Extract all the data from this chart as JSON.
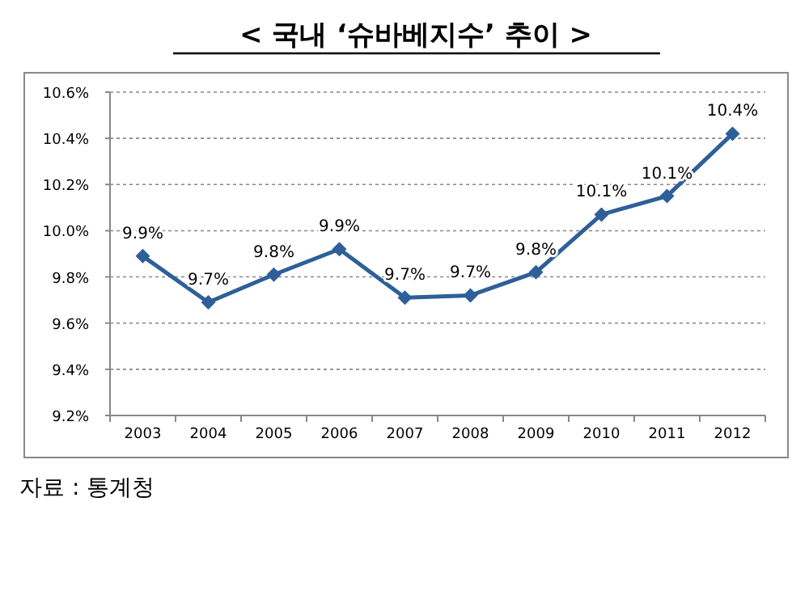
{
  "chart_data": {
    "type": "line",
    "title": "< 국내 ‘슈바베지수’ 추이 >",
    "categories": [
      "2003",
      "2004",
      "2005",
      "2006",
      "2007",
      "2008",
      "2009",
      "2010",
      "2011",
      "2012"
    ],
    "series": [
      {
        "color": "#2e5f98",
        "values": [
          9.89,
          9.69,
          9.81,
          9.92,
          9.71,
          9.72,
          9.82,
          10.07,
          10.15,
          10.42
        ],
        "value_labels": [
          "9.9%",
          "9.7%",
          "9.8%",
          "9.9%",
          "9.7%",
          "9.7%",
          "9.8%",
          "10.1%",
          "10.1%",
          "10.4%"
        ]
      }
    ],
    "ylim": [
      9.2,
      10.6
    ],
    "yticks": [
      {
        "value": 9.2,
        "label": "9.2%"
      },
      {
        "value": 9.4,
        "label": "9.4%"
      },
      {
        "value": 9.6,
        "label": "9.6%"
      },
      {
        "value": 9.8,
        "label": "9.8%"
      },
      {
        "value": 10.0,
        "label": "10.0%"
      },
      {
        "value": 10.2,
        "label": "10.2%"
      },
      {
        "value": 10.4,
        "label": "10.4%"
      },
      {
        "value": 10.6,
        "label": "10.6%"
      }
    ],
    "grid": "y",
    "marker": "diamond",
    "line_style": "solid",
    "annotations": [
      "자료 : 통계청"
    ]
  }
}
